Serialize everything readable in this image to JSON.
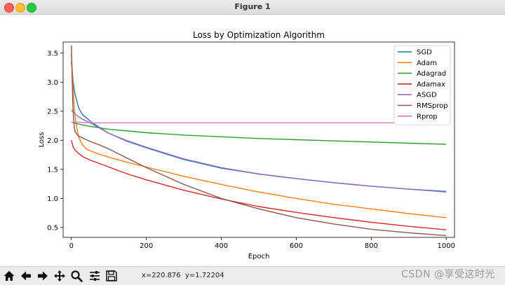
{
  "window": {
    "title": "Figure 1"
  },
  "toolbar": {
    "buttons": [
      {
        "name": "home-button",
        "icon": "home-icon"
      },
      {
        "name": "back-button",
        "icon": "arrow-left-icon"
      },
      {
        "name": "forward-button",
        "icon": "arrow-right-icon"
      },
      {
        "name": "pan-button",
        "icon": "move-icon"
      },
      {
        "name": "zoom-button",
        "icon": "magnifier-icon"
      },
      {
        "name": "configure-subplots-button",
        "icon": "sliders-icon"
      },
      {
        "name": "save-button",
        "icon": "floppy-icon"
      }
    ],
    "coord_x": "x=220.876",
    "coord_y": "y=1.72204"
  },
  "watermark": "CSDN @享受这时光",
  "chart_data": {
    "type": "line",
    "title": "Loss by Optimization Algorithm",
    "xlabel": "Epoch",
    "ylabel": "Loss",
    "xlim": [
      -22,
      1022
    ],
    "ylim": [
      0.33,
      3.69
    ],
    "xticks": [
      0,
      200,
      400,
      600,
      800,
      1000
    ],
    "yticks": [
      0.5,
      1.0,
      1.5,
      2.0,
      2.5,
      3.0,
      3.5
    ],
    "xtick_labels": [
      "0",
      "200",
      "400",
      "600",
      "800",
      "1000"
    ],
    "ytick_labels": [
      "0.5",
      "1.0",
      "1.5",
      "2.0",
      "2.5",
      "3.0",
      "3.5"
    ],
    "legend_position": "top-right",
    "series": [
      {
        "name": "SGD",
        "color": "#1f77b4",
        "x": [
          0,
          5,
          10,
          20,
          30,
          50,
          75,
          100,
          150,
          200,
          300,
          400,
          500,
          600,
          700,
          800,
          900,
          1000
        ],
        "y": [
          3.35,
          3.0,
          2.78,
          2.55,
          2.44,
          2.33,
          2.22,
          2.12,
          1.98,
          1.87,
          1.67,
          1.52,
          1.42,
          1.34,
          1.27,
          1.21,
          1.16,
          1.12
        ]
      },
      {
        "name": "Adam",
        "color": "#ff7f0e",
        "x": [
          0,
          3,
          6,
          10,
          15,
          20,
          30,
          40,
          50,
          75,
          100,
          150,
          200,
          300,
          400,
          500,
          600,
          700,
          800,
          900,
          1000
        ],
        "y": [
          3.5,
          3.1,
          2.7,
          2.4,
          2.2,
          2.05,
          1.92,
          1.85,
          1.82,
          1.76,
          1.71,
          1.62,
          1.54,
          1.38,
          1.24,
          1.11,
          1.0,
          0.9,
          0.82,
          0.74,
          0.67
        ]
      },
      {
        "name": "Adagrad",
        "color": "#2ca02c",
        "x": [
          0,
          25,
          50,
          100,
          150,
          200,
          300,
          400,
          500,
          600,
          700,
          800,
          900,
          1000
        ],
        "y": [
          2.31,
          2.27,
          2.24,
          2.19,
          2.16,
          2.13,
          2.09,
          2.06,
          2.03,
          2.01,
          1.99,
          1.97,
          1.95,
          1.93
        ]
      },
      {
        "name": "Adamax",
        "color": "#d62728",
        "x": [
          0,
          5,
          10,
          20,
          30,
          50,
          75,
          100,
          150,
          200,
          300,
          400,
          500,
          600,
          700,
          800,
          900,
          1000
        ],
        "y": [
          2.0,
          1.88,
          1.83,
          1.77,
          1.72,
          1.66,
          1.6,
          1.54,
          1.42,
          1.32,
          1.14,
          0.99,
          0.86,
          0.76,
          0.67,
          0.59,
          0.52,
          0.46
        ]
      },
      {
        "name": "ASGD",
        "color": "#9467bd",
        "x": [
          0,
          10,
          20,
          30,
          50,
          75,
          100,
          150,
          200,
          300,
          400,
          500,
          600,
          700,
          800,
          900,
          1000
        ],
        "y": [
          2.52,
          2.45,
          2.4,
          2.36,
          2.3,
          2.21,
          2.12,
          1.99,
          1.88,
          1.68,
          1.53,
          1.42,
          1.34,
          1.27,
          1.21,
          1.16,
          1.11
        ]
      },
      {
        "name": "RMSprop",
        "color": "#8c564b",
        "x": [
          0,
          2,
          4,
          6,
          8,
          10,
          15,
          20,
          30,
          40,
          50,
          75,
          100,
          150,
          200,
          300,
          400,
          500,
          600,
          700,
          800,
          900,
          1000
        ],
        "y": [
          3.63,
          3.1,
          2.6,
          2.35,
          2.22,
          2.15,
          2.1,
          2.07,
          2.04,
          2.01,
          1.98,
          1.92,
          1.85,
          1.69,
          1.53,
          1.24,
          1.0,
          0.82,
          0.67,
          0.56,
          0.47,
          0.41,
          0.36
        ]
      },
      {
        "name": "Rprop",
        "color": "#e377c2",
        "x": [
          0,
          20,
          40,
          60,
          100,
          200,
          1000
        ],
        "y": [
          2.31,
          2.31,
          2.3,
          2.3,
          2.3,
          2.3,
          2.3
        ]
      }
    ]
  }
}
